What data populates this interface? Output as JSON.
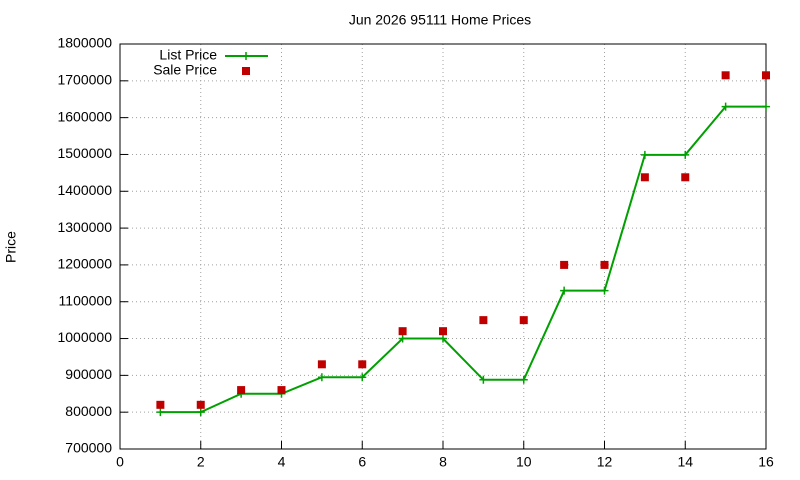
{
  "chart_data": {
    "type": "line",
    "title": "Jun 2026 95111 Home Prices",
    "y_label": "Price",
    "x": [
      1,
      2,
      3,
      4,
      5,
      6,
      7,
      8,
      9,
      10,
      11,
      12,
      13,
      14,
      15,
      16
    ],
    "series": [
      {
        "name": "List Price",
        "color": "#00a000",
        "style": "linespoints",
        "values": [
          800000,
          800000,
          850000,
          850000,
          895000,
          895000,
          1000000,
          1000000,
          888000,
          888000,
          1130000,
          1130000,
          1499000,
          1499000,
          1630000,
          1630000
        ]
      },
      {
        "name": "Sale Price",
        "color": "#c00000",
        "style": "points",
        "values": [
          820000,
          820000,
          860000,
          860000,
          930000,
          930000,
          1020000,
          1020000,
          1050000,
          1050000,
          1200000,
          1200000,
          1438000,
          1438000,
          1715000,
          1715000
        ]
      }
    ],
    "xlim": [
      0,
      16
    ],
    "xticks": [
      0,
      2,
      4,
      6,
      8,
      10,
      12,
      14,
      16
    ],
    "ylim": [
      700000,
      1800000
    ],
    "yticks": [
      700000,
      800000,
      900000,
      1000000,
      1100000,
      1200000,
      1300000,
      1400000,
      1500000,
      1600000,
      1700000,
      1800000
    ],
    "grid": true,
    "legend": "top-left"
  }
}
